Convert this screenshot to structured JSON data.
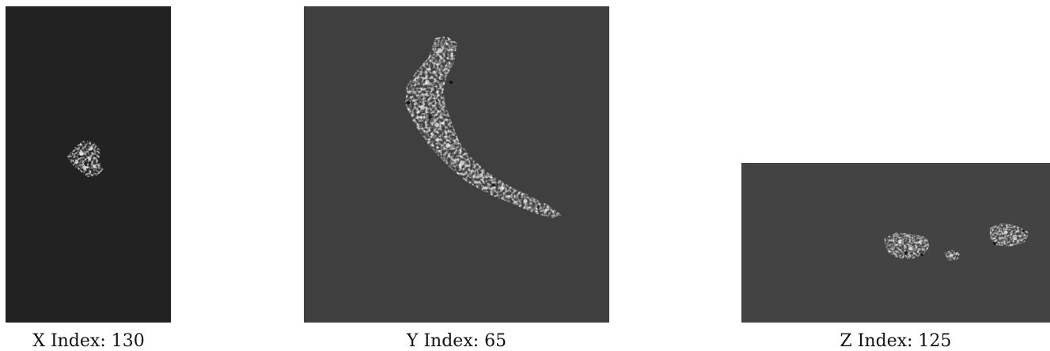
{
  "panels": {
    "x": {
      "caption": "X Index: 130",
      "background": "#222222"
    },
    "y": {
      "caption": "Y Index: 65",
      "background": "#3f3f3f"
    },
    "z": {
      "caption": "Z Index: 125",
      "background": "#434343"
    }
  }
}
